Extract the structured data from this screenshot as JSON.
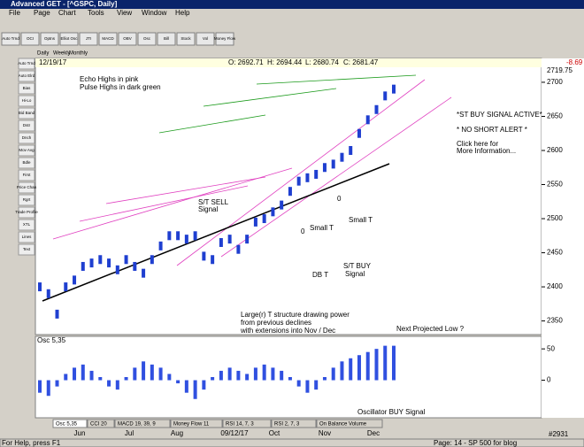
{
  "window": {
    "title": "Advanced GET - [^GSPC, Daily]",
    "menu": [
      "File",
      "Page",
      "Chart",
      "Tools",
      "View",
      "Window",
      "Help"
    ]
  },
  "toolbar": {
    "buttons": [
      "Auto Trnd",
      "OCI",
      "Optns",
      "Elliot Osc",
      "JTI",
      "MACD",
      "OBV",
      "Osc",
      "Bill",
      "Stock",
      "Vol",
      "Money Flow"
    ]
  },
  "timeframe_tabs": [
    "Daily",
    "Weekly",
    "Monthly"
  ],
  "side_tools": [
    "Auto Trnd",
    "Auto Elrd",
    "Bias",
    "Hi-Lo",
    "Bid Band",
    "Dstr",
    "Dnch",
    "Mov Avg",
    "Bdle",
    "First",
    "Price Chan",
    "Rgrt",
    "Trade Profile",
    "XTL",
    "Lines",
    "Text"
  ],
  "chart": {
    "date": "12/19/17",
    "ohlc": [
      "O: 2692.71",
      "H: 2694.44",
      "L: 2680.74",
      "C: 2681.47"
    ],
    "change": "-8.69",
    "price_axis": {
      "top_label": "2719.75",
      "lim": [
        2330,
        2722
      ],
      "ticks": [
        2350,
        2400,
        2450,
        2500,
        2550,
        2600,
        2650,
        2700
      ]
    },
    "closes": [
      2400,
      2390,
      2360,
      2400,
      2410,
      2430,
      2435,
      2440,
      2435,
      2425,
      2440,
      2430,
      2420,
      2440,
      2460,
      2475,
      2475,
      2470,
      2475,
      2445,
      2440,
      2465,
      2470,
      2455,
      2470,
      2495,
      2500,
      2510,
      2520,
      2540,
      2555,
      2560,
      2565,
      2575,
      2580,
      2590,
      2600,
      2625,
      2645,
      2660,
      2680,
      2690
    ],
    "annotations": [
      "Echo Highs in pink",
      "Pulse Highs in dark green",
      "*ST BUY SIGNAL ACTIVE*",
      "* NO SHORT ALERT *",
      "Click here for",
      "More Information...",
      "S/T SELL",
      "Signal",
      "Small T",
      "Small T",
      "0",
      "0",
      "DB T",
      "S/T BUY",
      "Signal",
      "Large(r) T structure drawing power",
      "from previous declines",
      "with extensions into Nov / Dec",
      "Next Projected Low ?",
      "Oscillator BUY Signal"
    ],
    "x_labels": [
      "Jun",
      "Jul",
      "Aug",
      "09/12/17",
      "Oct",
      "Nov",
      "Dec"
    ],
    "oscillator": {
      "label": "Osc 5,35",
      "lim": [
        -60,
        70
      ],
      "ticks": [
        50,
        0
      ],
      "values": [
        -20,
        -25,
        -10,
        10,
        20,
        25,
        15,
        5,
        -10,
        -15,
        5,
        20,
        30,
        25,
        20,
        10,
        -5,
        -20,
        -30,
        -15,
        5,
        15,
        20,
        15,
        10,
        20,
        25,
        20,
        15,
        5,
        -10,
        -20,
        -15,
        5,
        20,
        30,
        35,
        40,
        45,
        50,
        55,
        55
      ]
    },
    "indicator_tabs": [
      "Osc 5,35",
      "CCI 20",
      "MACD 19, 39, 9",
      "Money Flow 11",
      "RSI 14, 7, 3",
      "RSI 2, 7, 3",
      "On Balance Volume"
    ]
  },
  "status": {
    "help": "For Help, press F1",
    "page": "Page: 14 - SP 500 for blog",
    "code": "#2931"
  }
}
